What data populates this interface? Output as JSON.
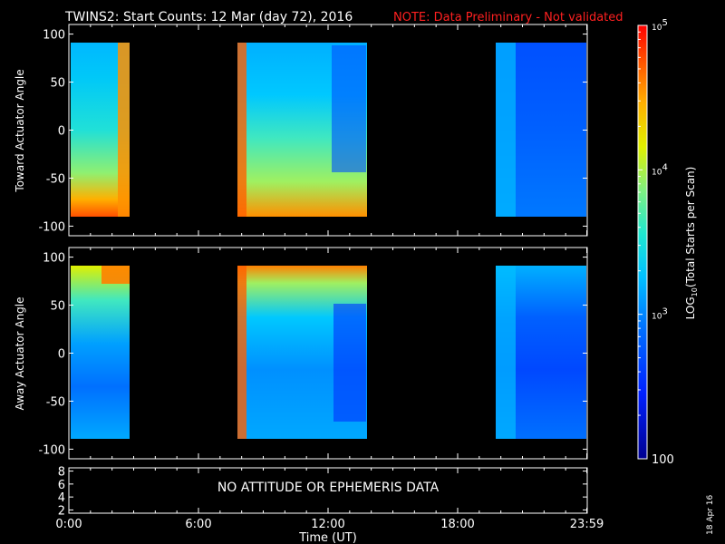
{
  "header": {
    "title": "TWINS2: Start Counts: 12 Mar (day  72), 2016",
    "note": "NOTE: Data Preliminary - Not validated",
    "note_color": "#ff2020"
  },
  "footer": {
    "message": "NO ATTITUDE OR EPHEMERIS DATA",
    "date_stamp": "18 Apr 16",
    "xlabel": "Time (UT)"
  },
  "colors": {
    "background": "#000000",
    "axes": "#ffffff",
    "colormap": [
      "#000090",
      "#0020ff",
      "#0070ff",
      "#00c0ff",
      "#20e8d0",
      "#80f080",
      "#e0f000",
      "#ffb000",
      "#ff5000",
      "#ff0000"
    ]
  },
  "chart_data": [
    {
      "type": "heatmap",
      "ylabel": "Toward Actuator Angle",
      "xlim": [
        0,
        24
      ],
      "ylim": [
        -110,
        110
      ],
      "ytick_labels": [
        "100",
        "50",
        "0",
        "-50",
        "-100"
      ],
      "ytick_values": [
        100,
        50,
        0,
        -50,
        -100
      ],
      "xtick_labels": [
        "0:00",
        "6:00",
        "12:00",
        "18:00",
        "23:59"
      ],
      "xtick_values": [
        0,
        6,
        12,
        18,
        23.98
      ],
      "data_range_y": [
        -90,
        90
      ],
      "data_blocks_hours": [
        [
          0.0,
          2.7
        ],
        [
          7.8,
          13.8
        ],
        [
          20.1,
          24.0
        ]
      ],
      "approx_log10_levels": {
        "block_1": 3.6,
        "block_2": 3.7,
        "block_3": 2.7
      }
    },
    {
      "type": "heatmap",
      "ylabel": "Away Actuator Angle",
      "xlim": [
        0,
        24
      ],
      "ylim": [
        -110,
        110
      ],
      "ytick_labels": [
        "100",
        "50",
        "0",
        "-50",
        "-100"
      ],
      "ytick_values": [
        100,
        50,
        0,
        -50,
        -100
      ],
      "xtick_labels": [
        "0:00",
        "6:00",
        "12:00",
        "18:00",
        "23:59"
      ],
      "xtick_values": [
        0,
        6,
        12,
        18,
        23.98
      ],
      "data_range_y": [
        -90,
        90
      ],
      "data_blocks_hours": [
        [
          0.0,
          2.7
        ],
        [
          7.8,
          13.8
        ],
        [
          20.1,
          24.0
        ]
      ],
      "approx_log10_levels": {
        "block_1": 3.3,
        "block_2": 3.4,
        "block_3": 2.8
      }
    },
    {
      "type": "line",
      "ylabel": "",
      "xlim": [
        0,
        24
      ],
      "ylim": [
        1.5,
        8.5
      ],
      "ytick_labels": [
        "8",
        "6",
        "4",
        "2"
      ],
      "ytick_values": [
        8,
        6,
        4,
        2
      ],
      "xtick_labels": [
        "0:00",
        "6:00",
        "12:00",
        "18:00",
        "23:59"
      ],
      "xtick_values": [
        0,
        6,
        12,
        18,
        23.98
      ],
      "series": []
    }
  ],
  "colorbar": {
    "label": "LOG",
    "label_sub": "10",
    "label_rest": "(Total Starts per Scan)",
    "min": 100,
    "max": 100000,
    "tick_labels": [
      {
        "base": "10",
        "exp": "5",
        "value": 100000
      },
      {
        "base": "10",
        "exp": "4",
        "value": 10000
      },
      {
        "base": "10",
        "exp": "3",
        "value": 1000
      },
      {
        "base": "100",
        "exp": "",
        "value": 100
      }
    ]
  }
}
